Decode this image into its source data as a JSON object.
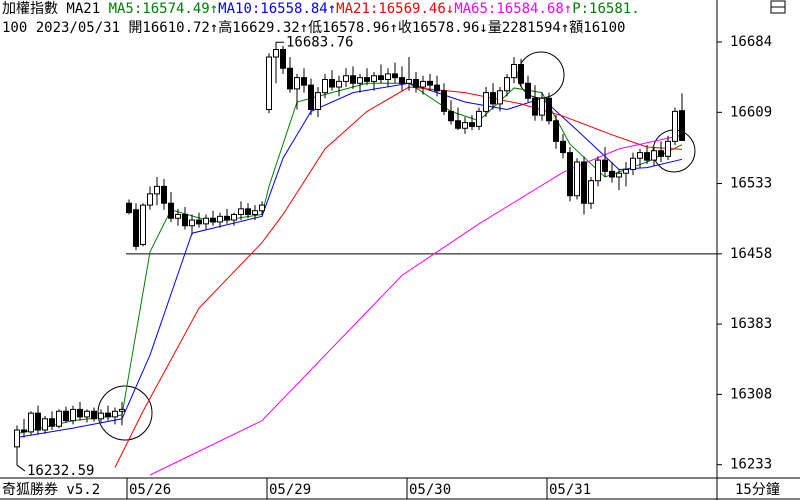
{
  "chart_data": {
    "type": "candlestick",
    "header": [
      {
        "text": "加權指數 MA21 ",
        "color": "#000000"
      },
      {
        "text": "MA5:16574.49↑",
        "color": "#008000"
      },
      {
        "text": "MA10:16558.84↑",
        "color": "#0000ff"
      },
      {
        "text": "MA21:16569.46↓",
        "color": "#ff0000"
      },
      {
        "text": "MA65:16584.68↑",
        "color": "#ff00ff"
      },
      {
        "text": "P:16581.",
        "color": "#008000"
      }
    ],
    "subheader": "100 2023/05/31 開16610.72↑高16629.32↑低16578.96↑收16578.96↓量2281594↑額16100",
    "footer_left": "奇狐勝券 v5.2",
    "footer_right": "15分鐘",
    "day_labels": [
      {
        "bar": 16,
        "label": "05/26"
      },
      {
        "bar": 36,
        "label": "05/29"
      },
      {
        "bar": 56,
        "label": "05/30"
      },
      {
        "bar": 76,
        "label": "05/31"
      }
    ],
    "ylim": [
      16218.8,
      16688.3
    ],
    "yticks": [
      16684,
      16609,
      16533,
      16458,
      16383,
      16308,
      16233
    ],
    "hline": 16458,
    "annotations": [
      {
        "bar": 37,
        "value": 16683.76,
        "label": "16683.76"
      },
      {
        "bar": 0,
        "value": 16232.59,
        "label": "16232.59"
      }
    ],
    "candles": [
      [
        16252,
        16275,
        16232.59,
        16270
      ],
      [
        16270,
        16282,
        16262,
        16268
      ],
      [
        16268,
        16290,
        16265,
        16288
      ],
      [
        16288,
        16296,
        16265,
        16270
      ],
      [
        16270,
        16285,
        16266,
        16282
      ],
      [
        16282,
        16290,
        16270,
        16274
      ],
      [
        16274,
        16292,
        16272,
        16290
      ],
      [
        16290,
        16295,
        16278,
        16280
      ],
      [
        16280,
        16296,
        16276,
        16292
      ],
      [
        16292,
        16300,
        16280,
        16284
      ],
      [
        16284,
        16292,
        16278,
        16290
      ],
      [
        16290,
        16294,
        16279,
        16282
      ],
      [
        16282,
        16292,
        16278,
        16288
      ],
      [
        16288,
        16296,
        16280,
        16284
      ],
      [
        16284,
        16294,
        16276,
        16290
      ],
      [
        16290,
        16300,
        16275,
        16292
      ],
      [
        16512,
        16516,
        16500,
        16502
      ],
      [
        16505,
        16512,
        16462,
        16466
      ],
      [
        16468,
        16512,
        16466,
        16510
      ],
      [
        16510,
        16530,
        16505,
        16522
      ],
      [
        16522,
        16540,
        16510,
        16530
      ],
      [
        16530,
        16538,
        16505,
        16512
      ],
      [
        16512,
        16524,
        16492,
        16496
      ],
      [
        16496,
        16506,
        16488,
        16500
      ],
      [
        16500,
        16508,
        16484,
        16488
      ],
      [
        16488,
        16500,
        16478,
        16494
      ],
      [
        16494,
        16502,
        16486,
        16490
      ],
      [
        16490,
        16500,
        16484,
        16496
      ],
      [
        16496,
        16504,
        16488,
        16492
      ],
      [
        16492,
        16502,
        16486,
        16498
      ],
      [
        16498,
        16506,
        16490,
        16494
      ],
      [
        16494,
        16502,
        16488,
        16500
      ],
      [
        16500,
        16514,
        16494,
        16506
      ],
      [
        16506,
        16512,
        16496,
        16500
      ],
      [
        16500,
        16510,
        16494,
        16504
      ],
      [
        16504,
        16514,
        16500,
        16510
      ],
      [
        16612,
        16672,
        16608,
        16668
      ],
      [
        16668,
        16683.76,
        16640,
        16676
      ],
      [
        16676,
        16680,
        16650,
        16656
      ],
      [
        16656,
        16668,
        16630,
        16634
      ],
      [
        16634,
        16650,
        16612,
        16646
      ],
      [
        16646,
        16656,
        16630,
        16638
      ],
      [
        16638,
        16645,
        16606,
        16612
      ],
      [
        16612,
        16636,
        16604,
        16630
      ],
      [
        16630,
        16650,
        16624,
        16644
      ],
      [
        16644,
        16654,
        16632,
        16636
      ],
      [
        16636,
        16648,
        16626,
        16642
      ],
      [
        16642,
        16656,
        16636,
        16648
      ],
      [
        16648,
        16658,
        16634,
        16640
      ],
      [
        16640,
        16650,
        16630,
        16646
      ],
      [
        16646,
        16656,
        16638,
        16642
      ],
      [
        16642,
        16652,
        16632,
        16648
      ],
      [
        16648,
        16660,
        16640,
        16644
      ],
      [
        16644,
        16656,
        16636,
        16650
      ],
      [
        16650,
        16662,
        16640,
        16646
      ],
      [
        16646,
        16658,
        16632,
        16640
      ],
      [
        16640,
        16668,
        16632,
        16644
      ],
      [
        16644,
        16652,
        16630,
        16636
      ],
      [
        16636,
        16648,
        16628,
        16642
      ],
      [
        16642,
        16650,
        16632,
        16638
      ],
      [
        16638,
        16648,
        16626,
        16632
      ],
      [
        16632,
        16640,
        16606,
        16610
      ],
      [
        16610,
        16622,
        16596,
        16600
      ],
      [
        16600,
        16614,
        16590,
        16592
      ],
      [
        16592,
        16604,
        16586,
        16598
      ],
      [
        16598,
        16606,
        16590,
        16594
      ],
      [
        16594,
        16614,
        16590,
        16610
      ],
      [
        16610,
        16636,
        16604,
        16630
      ],
      [
        16630,
        16640,
        16612,
        16618
      ],
      [
        16618,
        16636,
        16610,
        16632
      ],
      [
        16632,
        16650,
        16626,
        16646
      ],
      [
        16646,
        16668,
        16640,
        16660
      ],
      [
        16660,
        16666,
        16636,
        16640
      ],
      [
        16640,
        16648,
        16620,
        16624
      ],
      [
        16624,
        16638,
        16600,
        16606
      ],
      [
        16606,
        16630,
        16600,
        16624
      ],
      [
        16624,
        16630,
        16596,
        16600
      ],
      [
        16600,
        16606,
        16570,
        16578
      ],
      [
        16578,
        16586,
        16560,
        16566
      ],
      [
        16566,
        16572,
        16514,
        16520
      ],
      [
        16520,
        16560,
        16516,
        16556
      ],
      [
        16556,
        16562,
        16500,
        16512
      ],
      [
        16512,
        16540,
        16506,
        16536
      ],
      [
        16536,
        16562,
        16530,
        16558
      ],
      [
        16558,
        16572,
        16540,
        16546
      ],
      [
        16546,
        16556,
        16534,
        16540
      ],
      [
        16540,
        16548,
        16526,
        16544
      ],
      [
        16544,
        16556,
        16530,
        16548
      ],
      [
        16548,
        16566,
        16542,
        16560
      ],
      [
        16560,
        16570,
        16550,
        16566
      ],
      [
        16566,
        16574,
        16554,
        16558
      ],
      [
        16558,
        16572,
        16552,
        16568
      ],
      [
        16568,
        16578,
        16556,
        16562
      ],
      [
        16562,
        16584,
        16558,
        16578
      ],
      [
        16578,
        16614,
        16574,
        16610
      ],
      [
        16610.72,
        16629.32,
        16578.96,
        16578.96
      ]
    ],
    "series": [
      {
        "color": "#008000",
        "x": [
          0,
          8,
          15,
          16,
          19,
          22,
          28,
          35,
          36,
          40,
          44,
          50,
          56,
          62,
          66,
          71,
          75,
          79,
          84,
          90,
          95
        ],
        "values": [
          16266,
          16280,
          16286,
          16330,
          16460,
          16505,
          16492,
          16500,
          16530,
          16620,
          16628,
          16640,
          16640,
          16610,
          16600,
          16635,
          16630,
          16575,
          16540,
          16556,
          16574.49
        ]
      },
      {
        "color": "#0000ff",
        "x": [
          0,
          8,
          15,
          19,
          25,
          35,
          38,
          42,
          48,
          56,
          64,
          70,
          75,
          80,
          86,
          90,
          95
        ],
        "values": [
          16262,
          16272,
          16282,
          16350,
          16480,
          16498,
          16560,
          16610,
          16630,
          16640,
          16620,
          16612,
          16624,
          16590,
          16548,
          16550,
          16558.84
        ]
      },
      {
        "color": "#ff0000",
        "x": [
          14,
          18,
          26,
          35,
          38,
          44,
          50,
          56,
          64,
          72,
          78,
          85,
          90,
          95
        ],
        "values": [
          16230,
          16290,
          16400,
          16470,
          16500,
          16570,
          16610,
          16636,
          16630,
          16618,
          16605,
          16585,
          16572,
          16569.46
        ]
      },
      {
        "color": "#ff00ff",
        "x": [
          19,
          35,
          55,
          66,
          78,
          86,
          95
        ],
        "values": [
          16222,
          16280,
          16435,
          16490,
          16545,
          16570,
          16584.68
        ]
      }
    ]
  }
}
